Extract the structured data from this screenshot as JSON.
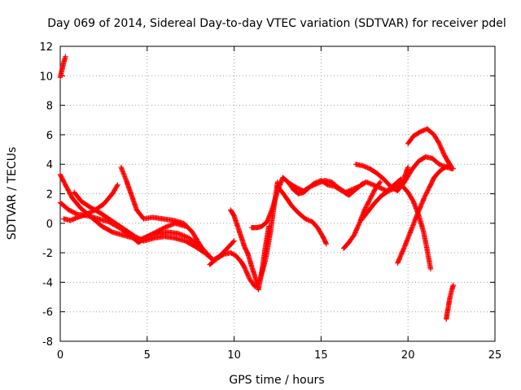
{
  "chart_data": {
    "type": "scatter",
    "title": "Day 069 of 2014, Sidereal Day-to-day VTEC variation (SDTVAR) for receiver pdel",
    "xlabel": "GPS time / hours",
    "ylabel": "SDTVAR / TECUs",
    "xlim": [
      0,
      25
    ],
    "ylim": [
      -8,
      12
    ],
    "xticks": [
      "0",
      "5",
      "10",
      "15",
      "20",
      "25"
    ],
    "yticks": [
      "-8",
      "-6",
      "-4",
      "-2",
      "0",
      "2",
      "4",
      "6",
      "8",
      "10",
      "12"
    ],
    "grid": true,
    "marker": "+",
    "color": "#ff0000",
    "series": [
      {
        "name": "trace-1",
        "x": [
          0.0,
          0.1,
          0.2,
          0.3
        ],
        "y": [
          9.9,
          10.4,
          10.9,
          11.3
        ]
      },
      {
        "name": "trace-2",
        "x": [
          0.0,
          0.3,
          0.7,
          1.2,
          1.8,
          2.4,
          3.0,
          3.6,
          4.2,
          4.6,
          5.0,
          5.6,
          6.2,
          6.8,
          7.4,
          8.0,
          8.4,
          8.8
        ],
        "y": [
          3.3,
          2.6,
          1.7,
          1.0,
          0.4,
          -0.2,
          -0.6,
          -0.8,
          -1.0,
          -1.1,
          -0.9,
          -0.7,
          -0.6,
          -0.7,
          -1.0,
          -1.5,
          -2.0,
          -2.5
        ]
      },
      {
        "name": "trace-3",
        "x": [
          0.0,
          0.5,
          1.0,
          1.6,
          2.2,
          2.8,
          3.4,
          4.0,
          4.5,
          5.0,
          5.5,
          6.0,
          6.6,
          7.2
        ],
        "y": [
          1.4,
          0.9,
          0.6,
          0.5,
          0.3,
          0.1,
          -0.3,
          -0.8,
          -1.3,
          -0.9,
          -0.6,
          -0.3,
          0.0,
          -0.2
        ]
      },
      {
        "name": "trace-4",
        "x": [
          0.2,
          0.6,
          1.0,
          1.5,
          2.0,
          2.5,
          3.0,
          3.3
        ],
        "y": [
          0.3,
          0.2,
          0.4,
          0.6,
          0.9,
          1.3,
          2.0,
          2.6
        ]
      },
      {
        "name": "trace-5",
        "x": [
          0.8,
          1.2,
          1.7,
          2.3,
          2.8,
          3.3,
          3.8,
          4.3,
          4.8,
          5.4,
          6.0,
          6.6,
          7.2,
          7.8,
          8.3
        ],
        "y": [
          2.1,
          1.5,
          1.1,
          0.7,
          0.3,
          -0.1,
          -0.5,
          -0.9,
          -1.2,
          -1.0,
          -0.9,
          -1.0,
          -1.2,
          -1.6,
          -2.0
        ]
      },
      {
        "name": "trace-6",
        "x": [
          3.5,
          3.8,
          4.1,
          4.4,
          4.8,
          5.3,
          5.9,
          6.5,
          7.1,
          7.6,
          8.0,
          8.4,
          8.8,
          9.2,
          9.6,
          10.0
        ],
        "y": [
          3.8,
          2.9,
          1.9,
          0.9,
          0.3,
          0.4,
          0.3,
          0.2,
          0.0,
          -0.6,
          -1.4,
          -2.1,
          -2.5,
          -2.2,
          -1.7,
          -1.2
        ]
      },
      {
        "name": "trace-7",
        "x": [
          8.6,
          9.0,
          9.4,
          9.8,
          10.1,
          10.4,
          10.6,
          10.9,
          11.2,
          11.5,
          11.8,
          12.1,
          12.3,
          12.5
        ],
        "y": [
          -2.8,
          -2.4,
          -2.1,
          -2.0,
          -2.2,
          -2.6,
          -3.0,
          -3.8,
          -4.3,
          -3.8,
          -2.5,
          -0.5,
          1.2,
          2.8
        ]
      },
      {
        "name": "trace-8",
        "x": [
          9.8,
          10.0,
          10.2,
          10.4,
          10.6,
          10.8,
          11.0,
          11.2,
          11.4,
          11.6,
          11.8,
          12.0
        ],
        "y": [
          0.9,
          0.5,
          -0.2,
          -0.9,
          -1.6,
          -2.1,
          -2.9,
          -3.6,
          -4.5,
          -3.2,
          -1.6,
          -0.2
        ]
      },
      {
        "name": "trace-9",
        "x": [
          11.0,
          11.3,
          11.6,
          11.9,
          12.2,
          12.5,
          12.8,
          13.1,
          13.4,
          13.7,
          14.0,
          14.3,
          14.6,
          15.0,
          15.4,
          15.8,
          16.2,
          16.6,
          17.0,
          17.4
        ],
        "y": [
          -0.3,
          -0.3,
          -0.2,
          0.1,
          1.0,
          2.2,
          3.1,
          2.8,
          2.3,
          2.0,
          2.1,
          2.4,
          2.7,
          2.9,
          2.6,
          2.5,
          2.2,
          1.9,
          2.3,
          2.7
        ]
      },
      {
        "name": "trace-10",
        "x": [
          12.5,
          12.9,
          13.3,
          13.7,
          14.1,
          14.5,
          14.8,
          15.1,
          15.3
        ],
        "y": [
          2.5,
          1.9,
          1.2,
          0.7,
          0.3,
          0.1,
          -0.3,
          -0.9,
          -1.4
        ]
      },
      {
        "name": "trace-11",
        "x": [
          13.2,
          13.6,
          14.0,
          14.4,
          14.8,
          15.2,
          15.6,
          16.0,
          16.4,
          16.8,
          17.2,
          17.6,
          18.0,
          18.4,
          18.8,
          19.2,
          19.6
        ],
        "y": [
          2.7,
          2.4,
          2.2,
          2.5,
          2.7,
          2.9,
          2.8,
          2.4,
          2.1,
          2.3,
          2.5,
          2.8,
          2.6,
          2.4,
          2.2,
          2.6,
          3.0
        ]
      },
      {
        "name": "trace-12",
        "x": [
          16.3,
          16.6,
          16.9,
          17.2,
          17.5,
          17.8,
          18.1,
          18.4
        ],
        "y": [
          -1.7,
          -1.3,
          -0.8,
          0.0,
          0.9,
          1.6,
          2.3,
          2.8
        ]
      },
      {
        "name": "trace-13",
        "x": [
          17.0,
          17.4,
          17.8,
          18.2,
          18.6,
          19.0,
          19.4,
          19.8,
          20.2,
          20.6,
          21.0,
          21.4,
          21.8,
          22.2,
          22.6
        ],
        "y": [
          4.0,
          3.9,
          3.7,
          3.4,
          3.0,
          2.5,
          2.2,
          2.8,
          3.6,
          4.2,
          4.5,
          4.4,
          4.0,
          3.8,
          3.7
        ]
      },
      {
        "name": "trace-14",
        "x": [
          17.3,
          17.7,
          18.1,
          18.5,
          18.9,
          19.3,
          19.7,
          20.0
        ],
        "y": [
          0.2,
          0.8,
          1.4,
          1.9,
          2.2,
          2.4,
          2.8,
          3.8
        ]
      },
      {
        "name": "trace-15",
        "x": [
          19.4,
          19.8,
          20.2,
          20.6,
          21.0,
          21.3,
          21.5,
          21.8,
          22.0,
          22.3,
          22.5
        ],
        "y": [
          -2.7,
          -1.6,
          -0.4,
          0.8,
          1.9,
          2.6,
          3.1,
          3.5,
          3.7,
          3.9,
          3.7
        ]
      },
      {
        "name": "trace-16",
        "x": [
          19.4,
          19.7,
          20.0,
          20.3,
          20.6,
          20.9,
          21.1,
          21.3
        ],
        "y": [
          2.8,
          2.5,
          2.1,
          1.5,
          0.6,
          -0.6,
          -1.8,
          -3.1
        ]
      },
      {
        "name": "trace-17",
        "x": [
          20.0,
          20.3,
          20.7,
          21.1,
          21.5,
          21.8,
          22.1,
          22.3,
          22.5
        ],
        "y": [
          5.4,
          5.9,
          6.2,
          6.4,
          6.0,
          5.4,
          4.6,
          4.2,
          3.8
        ]
      },
      {
        "name": "trace-18",
        "x": [
          22.2,
          22.3,
          22.4,
          22.5,
          22.6
        ],
        "y": [
          -6.5,
          -5.8,
          -5.1,
          -4.6,
          -4.2
        ]
      }
    ]
  }
}
